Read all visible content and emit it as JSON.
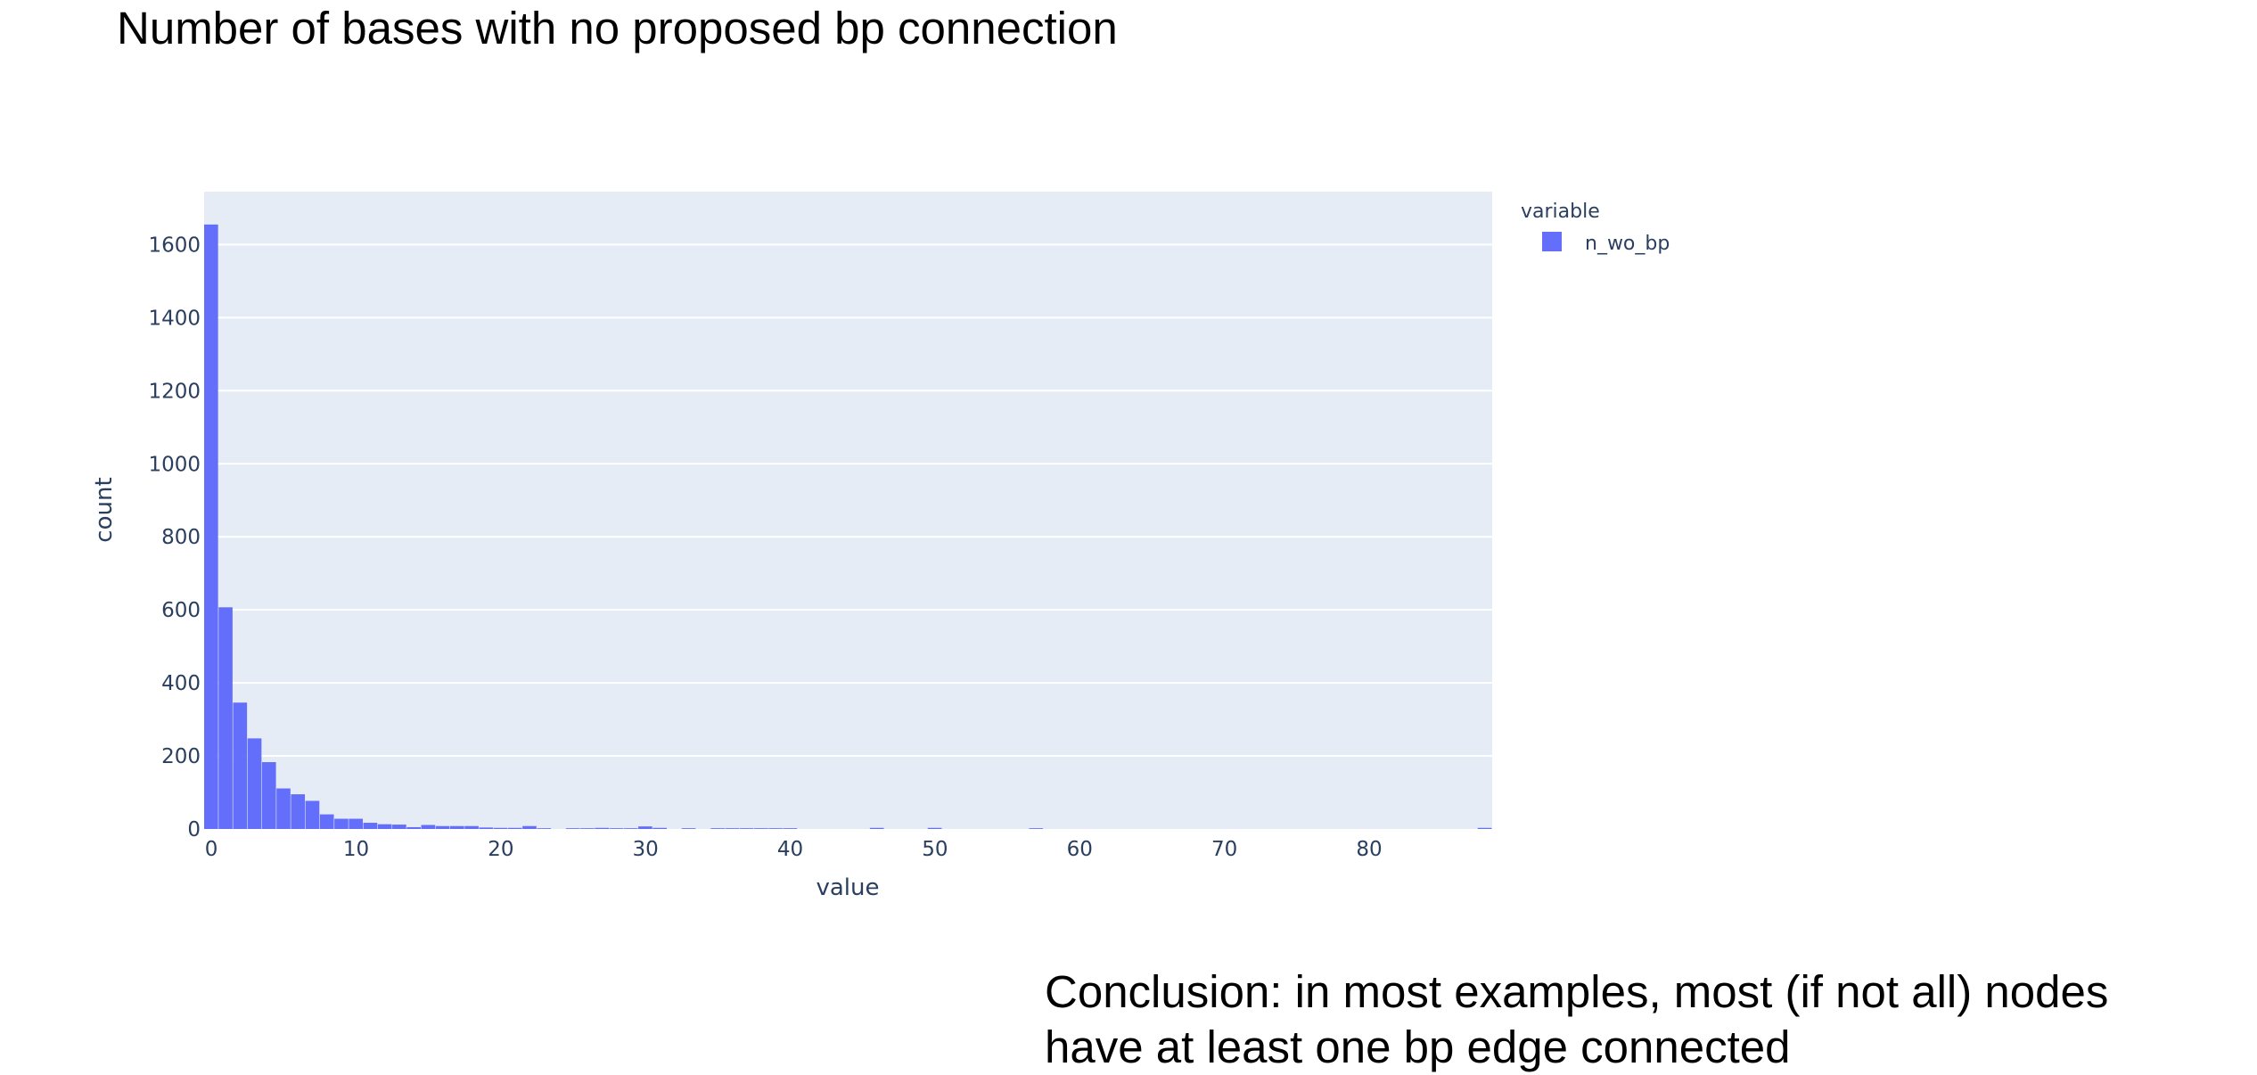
{
  "slide": {
    "title": "Number of bases with no proposed bp connection",
    "conclusion": [
      "Conclusion: in most examples, most (if not all) nodes",
      "have at least one bp edge connected"
    ]
  },
  "chart_data": {
    "type": "bar",
    "subtype": "histogram",
    "title": "",
    "xlabel": "value",
    "ylabel": "count",
    "xlim": [
      -0.5,
      88.5
    ],
    "ylim": [
      0,
      1745
    ],
    "x_ticks": [
      0,
      10,
      20,
      30,
      40,
      50,
      60,
      70,
      80
    ],
    "y_ticks": [
      0,
      200,
      400,
      600,
      800,
      1000,
      1200,
      1400,
      1600
    ],
    "bin_width": 1,
    "grid": true,
    "legend": {
      "title": "variable",
      "placement": "right",
      "entries": [
        "n_wo_bp"
      ]
    },
    "colors": {
      "bar": "#636efa",
      "plot_bg": "#e5ecf6",
      "grid": "#ffffff",
      "text": "#2a3f5f"
    },
    "series": [
      {
        "name": "n_wo_bp",
        "x": [
          0,
          1,
          2,
          3,
          4,
          5,
          6,
          7,
          8,
          9,
          10,
          11,
          12,
          13,
          14,
          15,
          16,
          17,
          18,
          19,
          20,
          21,
          22,
          23,
          25,
          26,
          27,
          28,
          29,
          30,
          31,
          33,
          35,
          36,
          37,
          38,
          39,
          40,
          46,
          50,
          57,
          88
        ],
        "values": [
          1655,
          607,
          346,
          248,
          183,
          111,
          95,
          77,
          40,
          28,
          28,
          17,
          13,
          12,
          5,
          11,
          8,
          8,
          8,
          4,
          3,
          3,
          8,
          2,
          2,
          2,
          3,
          2,
          2,
          7,
          3,
          2,
          2,
          2,
          2,
          2,
          2,
          2,
          3,
          3,
          2,
          3
        ]
      }
    ]
  }
}
